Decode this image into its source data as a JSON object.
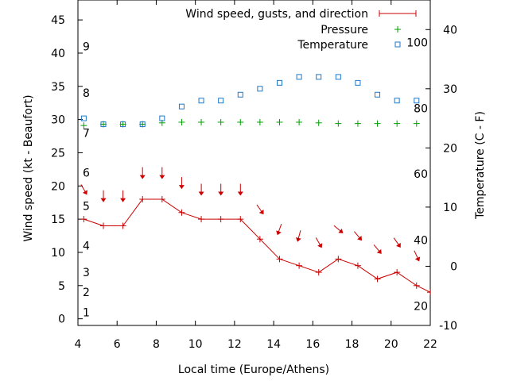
{
  "chart_data": {
    "type": "line",
    "xlabel": "Local time (Europe/Athens)",
    "ylabel": "Wind speed (kt - Beaufort)",
    "y2label": "Temperature (C - F)",
    "xlim": [
      4,
      22
    ],
    "ylim": [
      -1,
      48
    ],
    "y2lim": [
      -10,
      45
    ],
    "x_ticks": [
      4,
      6,
      8,
      10,
      12,
      14,
      16,
      18,
      20,
      22
    ],
    "y_ticks": [
      0,
      5,
      10,
      15,
      20,
      25,
      30,
      35,
      40,
      45
    ],
    "y2_ticks": [
      -10,
      0,
      10,
      20,
      30,
      40
    ],
    "beaufort_labels": [
      {
        "label": "1",
        "y": 1
      },
      {
        "label": "2",
        "y": 4
      },
      {
        "label": "3",
        "y": 7
      },
      {
        "label": "4",
        "y": 11
      },
      {
        "label": "5",
        "y": 17
      },
      {
        "label": "6",
        "y": 22
      },
      {
        "label": "7",
        "y": 28
      },
      {
        "label": "8",
        "y": 34
      },
      {
        "label": "9",
        "y": 41
      }
    ],
    "fahrenheit_labels": [
      {
        "label": "20",
        "y2": -6.7
      },
      {
        "label": "40",
        "y2": 4.4
      },
      {
        "label": "60",
        "y2": 15.6
      },
      {
        "label": "80",
        "y2": 26.7
      },
      {
        "label": "100",
        "y2": 37.8
      }
    ],
    "legend": {
      "placement": "top-right",
      "entries": [
        "Wind speed, gusts, and direction",
        "Pressure",
        "Temperature"
      ]
    },
    "series": [
      {
        "name": "Wind speed, gusts, and direction",
        "color": "#cc0000",
        "x": [
          4.3,
          5.3,
          6.3,
          7.3,
          8.3,
          9.3,
          10.3,
          11.3,
          12.3,
          13.3,
          14.3,
          15.3,
          16.3,
          17.3,
          18.3,
          19.3,
          20.3,
          21.3,
          22
        ],
        "y": [
          15,
          14,
          14,
          18,
          18,
          16,
          15,
          15,
          15,
          12,
          9,
          8,
          7,
          9,
          8,
          6,
          7,
          5,
          4
        ]
      },
      {
        "name": "Pressure",
        "color": "#00a000",
        "x": [
          4.3,
          5.3,
          6.3,
          7.3,
          8.3,
          9.3,
          10.3,
          11.3,
          12.3,
          13.3,
          14.3,
          15.3,
          16.3,
          17.3,
          18.3,
          19.3,
          20.3,
          21.3
        ],
        "y": [
          29.1,
          29.3,
          29.3,
          29.3,
          29.5,
          29.6,
          29.6,
          29.6,
          29.6,
          29.6,
          29.6,
          29.6,
          29.5,
          29.4,
          29.4,
          29.4,
          29.4,
          29.4
        ]
      },
      {
        "name": "Temperature",
        "color": "#1f78c8",
        "x": [
          4.3,
          5.3,
          6.3,
          7.3,
          8.3,
          9.3,
          10.3,
          11.3,
          12.3,
          13.3,
          14.3,
          15.3,
          16.3,
          17.3,
          18.3,
          19.3,
          20.3,
          21.3
        ],
        "y2": [
          25,
          24,
          24,
          24,
          25,
          27,
          28,
          28,
          29,
          30,
          31,
          32,
          32,
          32,
          31,
          29,
          28,
          28
        ]
      }
    ],
    "wind_direction_arrows": [
      {
        "x": 4.3,
        "y": 19.5,
        "rotation": -30
      },
      {
        "x": 5.3,
        "y": 18.5,
        "rotation": 0
      },
      {
        "x": 6.3,
        "y": 18.5,
        "rotation": 0
      },
      {
        "x": 7.3,
        "y": 22.0,
        "rotation": 0
      },
      {
        "x": 8.3,
        "y": 22.0,
        "rotation": 0
      },
      {
        "x": 9.3,
        "y": 20.5,
        "rotation": 0
      },
      {
        "x": 10.3,
        "y": 19.5,
        "rotation": 0
      },
      {
        "x": 11.3,
        "y": 19.5,
        "rotation": 0
      },
      {
        "x": 12.3,
        "y": 19.5,
        "rotation": 0
      },
      {
        "x": 13.3,
        "y": 16.5,
        "rotation": -35
      },
      {
        "x": 14.3,
        "y": 13.5,
        "rotation": 20
      },
      {
        "x": 15.3,
        "y": 12.5,
        "rotation": 15
      },
      {
        "x": 16.3,
        "y": 11.5,
        "rotation": -30
      },
      {
        "x": 17.3,
        "y": 13.5,
        "rotation": -50
      },
      {
        "x": 18.3,
        "y": 12.5,
        "rotation": -40
      },
      {
        "x": 19.3,
        "y": 10.5,
        "rotation": -40
      },
      {
        "x": 20.3,
        "y": 11.5,
        "rotation": -35
      },
      {
        "x": 21.3,
        "y": 9.5,
        "rotation": -25
      }
    ]
  }
}
